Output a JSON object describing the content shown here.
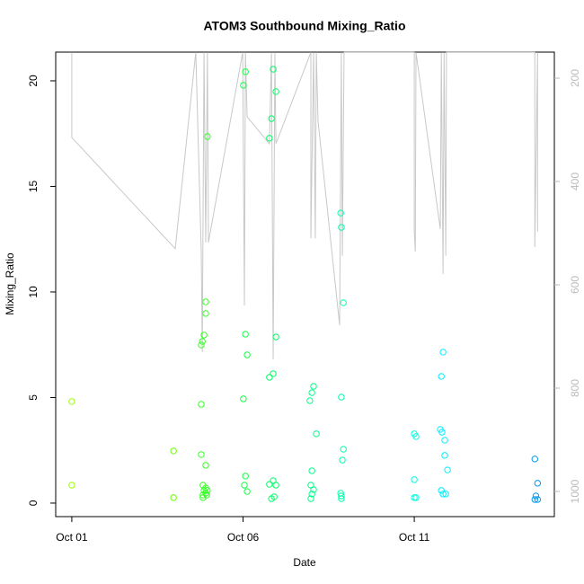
{
  "chart_data": {
    "type": "scatter",
    "title": "ATOM3 Southbound Mixing_Ratio",
    "x_label": "Date",
    "y_label": "Mixing_Ratio",
    "xlim": [
      0.53,
      15.09
    ],
    "xticks": [
      {
        "value": 1,
        "label": "Oct 01"
      },
      {
        "value": 6,
        "label": "Oct 06"
      },
      {
        "value": 11,
        "label": "Oct 11"
      }
    ],
    "ylim": [
      -0.64,
      21.36
    ],
    "yticks": [
      0,
      5,
      10,
      15,
      20
    ],
    "y2lim": [
      1048.7,
      149.6
    ],
    "y2ticks": [
      200,
      400,
      600,
      800,
      1000
    ],
    "series": [
      {
        "type": "line",
        "axis": "y2",
        "color": "#c8c8c8",
        "x": [
          1.0,
          1.0,
          4.02,
          4.62,
          4.78,
          4.81,
          4.86,
          4.91,
          4.96,
          4.99,
          5.99,
          6.04,
          6.07,
          6.12,
          6.77,
          6.83,
          6.88,
          6.93,
          6.96,
          7.98,
          7.98,
          8.06,
          8.11,
          8.14,
          8.19,
          8.82,
          8.87,
          8.9,
          8.95,
          11.0,
          11.0,
          11.03,
          11.05,
          11.76,
          11.79,
          11.84,
          11.87,
          11.92,
          11.94,
          14.52,
          14.52,
          14.6,
          14.6
        ],
        "values": [
          150,
          315,
          530,
          150,
          536,
          730,
          150,
          518,
          150,
          518,
          150,
          640,
          150,
          275,
          327,
          150,
          744,
          150,
          327,
          150,
          510,
          150,
          510,
          150,
          283,
          678,
          150,
          544,
          150,
          150,
          497,
          536,
          150,
          492,
          150,
          579,
          150,
          544,
          150,
          150,
          527,
          150,
          497
        ]
      },
      {
        "type": "scatter",
        "color": "#99ff00",
        "x": [
          1.0,
          1.0
        ],
        "values": [
          4.81,
          0.85
        ]
      },
      {
        "type": "scatter",
        "color": "#66ff00",
        "x": [
          3.97,
          3.97
        ],
        "values": [
          2.47,
          0.26
        ]
      },
      {
        "type": "scatter",
        "color": "#33ff22",
        "x": [
          4.91,
          4.91,
          4.86,
          4.81,
          4.78,
          4.78,
          4.78,
          4.91,
          4.83,
          4.91,
          4.86,
          4.96,
          4.91,
          4.83,
          4.94,
          4.83,
          4.96
        ],
        "values": [
          9.53,
          8.98,
          7.96,
          7.66,
          7.49,
          4.68,
          2.3,
          1.79,
          0.85,
          0.72,
          0.6,
          0.6,
          0.47,
          0.38,
          0.38,
          0.26,
          17.36
        ]
      },
      {
        "type": "scatter",
        "color": "#11ff44",
        "x": [
          6.07,
          6.01,
          6.07,
          6.12,
          6.01,
          6.07,
          6.04,
          6.12
        ],
        "values": [
          20.43,
          19.79,
          8.0,
          7.02,
          4.94,
          1.28,
          0.85,
          0.55
        ]
      },
      {
        "type": "scatter",
        "color": "#00ff66",
        "x": [
          6.88,
          6.96,
          6.83,
          6.77,
          6.96,
          6.88,
          6.77,
          6.88,
          6.77,
          6.96,
          6.91,
          6.83
        ],
        "values": [
          20.55,
          19.49,
          18.21,
          17.28,
          7.87,
          6.13,
          5.96,
          1.06,
          0.89,
          0.85,
          0.3,
          0.21
        ]
      },
      {
        "type": "scatter",
        "color": "#00ff88",
        "x": [
          8.06,
          8.01,
          7.95,
          8.14,
          8.01,
          7.98,
          8.06,
          8.01,
          7.98
        ],
        "values": [
          5.53,
          5.23,
          4.85,
          3.28,
          1.53,
          0.85,
          0.64,
          0.43,
          0.21
        ]
      },
      {
        "type": "scatter",
        "color": "#00ffaa",
        "x": [
          8.85,
          8.87,
          8.93,
          8.87,
          8.93,
          8.9,
          8.85,
          8.87,
          8.87
        ],
        "values": [
          13.74,
          13.06,
          9.49,
          5.02,
          2.55,
          2.04,
          0.47,
          0.34,
          0.21
        ]
      },
      {
        "type": "scatter",
        "color": "#00ffdd",
        "x": [
          11.0,
          11.05,
          11.0,
          11.0,
          11.05
        ],
        "values": [
          3.28,
          3.15,
          1.11,
          0.26,
          0.26
        ]
      },
      {
        "type": "scatter",
        "color": "#00eeff",
        "x": [
          11.84,
          11.79,
          11.76,
          11.81,
          11.89,
          11.89,
          11.97,
          11.79,
          11.84,
          11.92
        ],
        "values": [
          7.15,
          6.0,
          3.49,
          3.36,
          2.98,
          2.26,
          1.57,
          0.6,
          0.43,
          0.43
        ]
      },
      {
        "type": "scatter",
        "color": "#0099ee",
        "x": [
          14.52,
          14.6,
          14.55,
          14.6,
          14.52
        ],
        "values": [
          2.09,
          0.94,
          0.34,
          0.17,
          0.17
        ]
      }
    ]
  }
}
